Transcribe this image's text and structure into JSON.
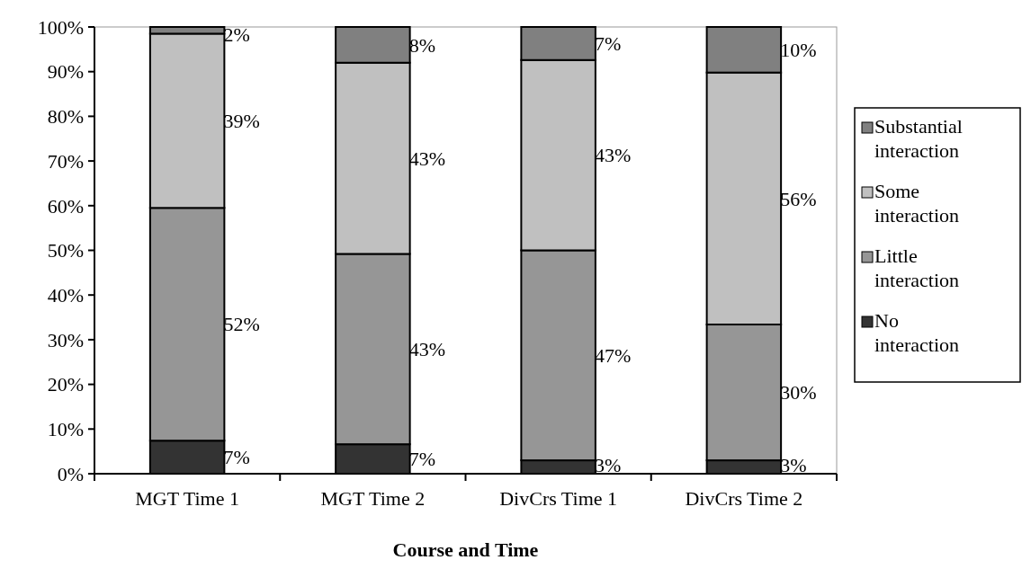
{
  "chart_data": {
    "type": "bar",
    "stacked": true,
    "xlabel": "Course and Time",
    "categories": [
      "MGT Time 1",
      "MGT Time 2",
      "DivCrs Time 1",
      "DivCrs Time 2"
    ],
    "series": [
      {
        "name": "No interaction",
        "color": "#333333",
        "values": [
          7.4,
          6.6,
          3,
          3
        ],
        "value_labels": [
          "7%",
          "7%",
          "3%",
          "3%"
        ]
      },
      {
        "name": "Little interaction",
        "color": "#969696",
        "values": [
          52.1,
          42.6,
          47,
          30.4
        ],
        "value_labels": [
          "52%",
          "43%",
          "47%",
          "30%"
        ]
      },
      {
        "name": "Some interaction",
        "color": "#c0c0c0",
        "values": [
          39,
          42.8,
          42.6,
          56.4
        ],
        "value_labels": [
          "39%",
          "43%",
          "43%",
          "56%"
        ]
      },
      {
        "name": "Substantial interaction",
        "color": "#808080",
        "values": [
          1.5,
          8,
          7.4,
          10.2
        ],
        "value_labels": [
          "2%",
          "8%",
          "7%",
          "10%"
        ]
      }
    ],
    "ylim": [
      0,
      100
    ],
    "yticks": [
      {
        "value": 0,
        "label": "0%"
      },
      {
        "value": 10,
        "label": "10%"
      },
      {
        "value": 20,
        "label": "20%"
      },
      {
        "value": 30,
        "label": "30%"
      },
      {
        "value": 40,
        "label": "40%"
      },
      {
        "value": 50,
        "label": "50%"
      },
      {
        "value": 60,
        "label": "60%"
      },
      {
        "value": 70,
        "label": "70%"
      },
      {
        "value": 80,
        "label": "80%"
      },
      {
        "value": 90,
        "label": "90%"
      },
      {
        "value": 100,
        "label": "100%"
      }
    ],
    "grid": false,
    "legend": "right"
  }
}
